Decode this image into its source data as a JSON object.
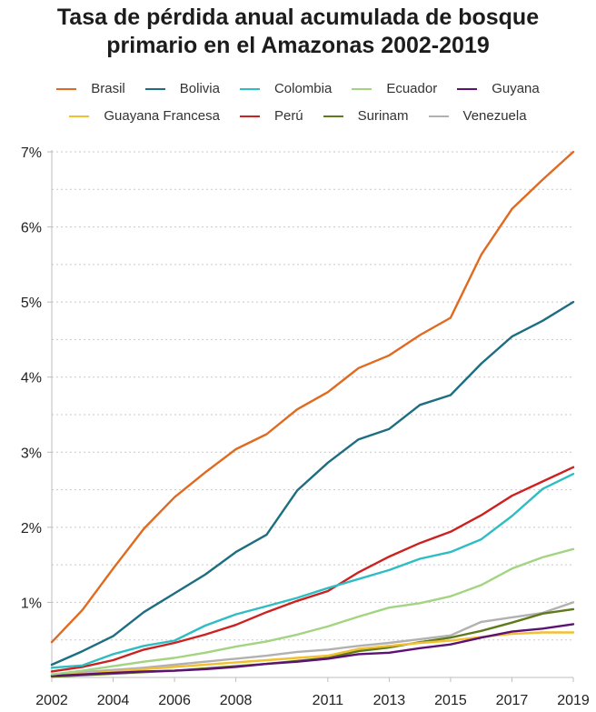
{
  "chart_data": {
    "type": "line",
    "title": "Tasa de pérdida anual acumulada de bosque primario en el Amazonas 2002-2019",
    "title_lines": [
      "Tasa de pérdida anual acumulada de bosque",
      "primario en el Amazonas 2002-2019"
    ],
    "xlabel": "",
    "ylabel": "",
    "x": [
      2002,
      2003,
      2004,
      2005,
      2006,
      2007,
      2008,
      2009,
      2010,
      2011,
      2012,
      2013,
      2014,
      2015,
      2016,
      2017,
      2018,
      2019
    ],
    "x_tick_labels": [
      "2002",
      "2004",
      "2006",
      "2008",
      "2011",
      "2013",
      "2015",
      "2017",
      "2019"
    ],
    "y_tick_labels": [
      "1%",
      "2%",
      "3%",
      "4%",
      "5%",
      "6%",
      "7%"
    ],
    "y_ticks": [
      1,
      2,
      3,
      4,
      5,
      6,
      7
    ],
    "ylim": [
      0,
      7
    ],
    "xlim": [
      2002,
      2019
    ],
    "grid": "horizontal dotted every 0.5%",
    "legend_position": "top",
    "series": [
      {
        "name": "Brasil",
        "color": "#e06a1f",
        "values": [
          0.47,
          0.9,
          1.45,
          1.98,
          2.4,
          2.73,
          3.04,
          3.24,
          3.57,
          3.8,
          4.12,
          4.29,
          4.56,
          4.79,
          5.63,
          6.24,
          6.63,
          7.0
        ]
      },
      {
        "name": "Bolivia",
        "color": "#1c6e80",
        "values": [
          0.17,
          0.35,
          0.55,
          0.87,
          1.12,
          1.37,
          1.67,
          1.9,
          2.49,
          2.86,
          3.17,
          3.31,
          3.63,
          3.76,
          4.18,
          4.54,
          4.75,
          5.0
        ]
      },
      {
        "name": "Colombia",
        "color": "#2ebdc2",
        "values": [
          0.13,
          0.16,
          0.31,
          0.42,
          0.49,
          0.69,
          0.84,
          0.95,
          1.06,
          1.19,
          1.31,
          1.43,
          1.58,
          1.67,
          1.84,
          2.15,
          2.51,
          2.71
        ]
      },
      {
        "name": "Ecuador",
        "color": "#a3d482",
        "values": [
          0.04,
          0.09,
          0.15,
          0.21,
          0.26,
          0.33,
          0.41,
          0.48,
          0.57,
          0.68,
          0.81,
          0.93,
          0.99,
          1.08,
          1.23,
          1.45,
          1.6,
          1.71
        ]
      },
      {
        "name": "Guyana",
        "color": "#5c1175",
        "values": [
          0.02,
          0.04,
          0.06,
          0.08,
          0.09,
          0.11,
          0.14,
          0.18,
          0.21,
          0.25,
          0.31,
          0.33,
          0.39,
          0.44,
          0.53,
          0.61,
          0.65,
          0.71
        ]
      },
      {
        "name": "Guayana Francesa",
        "color": "#f2bf30",
        "values": [
          0.02,
          0.05,
          0.08,
          0.11,
          0.14,
          0.17,
          0.2,
          0.23,
          0.26,
          0.29,
          0.38,
          0.42,
          0.46,
          0.49,
          0.54,
          0.58,
          0.6,
          0.6
        ]
      },
      {
        "name": "Perú",
        "color": "#cc2121",
        "values": [
          0.08,
          0.14,
          0.23,
          0.37,
          0.46,
          0.57,
          0.7,
          0.87,
          1.02,
          1.15,
          1.4,
          1.61,
          1.79,
          1.94,
          2.16,
          2.42,
          2.61,
          2.8
        ]
      },
      {
        "name": "Surinam",
        "color": "#5f7a1a",
        "values": [
          0.01,
          0.03,
          0.05,
          0.07,
          0.09,
          0.12,
          0.15,
          0.18,
          0.22,
          0.26,
          0.35,
          0.4,
          0.47,
          0.53,
          0.62,
          0.73,
          0.85,
          0.91
        ]
      },
      {
        "name": "Venezuela",
        "color": "#b1b1b1",
        "values": [
          0.03,
          0.07,
          0.1,
          0.13,
          0.17,
          0.21,
          0.25,
          0.29,
          0.34,
          0.37,
          0.42,
          0.46,
          0.51,
          0.56,
          0.74,
          0.8,
          0.86,
          1.0
        ]
      }
    ]
  }
}
